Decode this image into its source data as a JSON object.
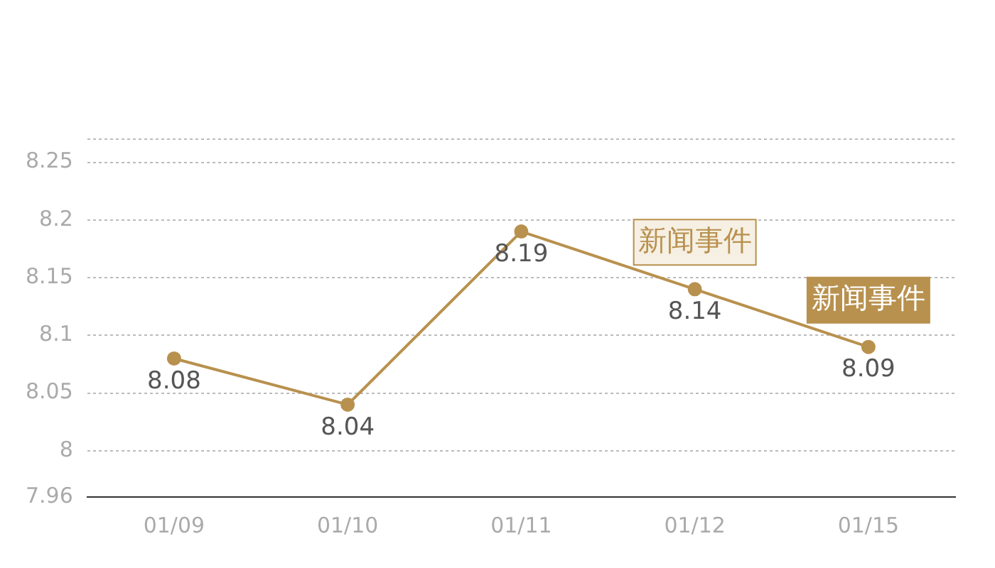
{
  "chart_data": {
    "type": "line",
    "categories": [
      "01/09",
      "01/10",
      "01/11",
      "01/12",
      "01/15"
    ],
    "series": [
      {
        "color": "#b8914e",
        "values": [
          8.08,
          8.04,
          8.19,
          8.14,
          8.09
        ]
      }
    ],
    "ylim": [
      7.96,
      8.27
    ],
    "yticks": [
      7.96,
      8,
      8.05,
      8.1,
      8.15,
      8.2,
      8.25,
      {
        "value": 8.27,
        "label": null
      }
    ],
    "grid": "y",
    "marker": "circle",
    "line_style": "solid",
    "data_labels": true,
    "legend": false,
    "annotations": [
      {
        "text": "新闻事件",
        "x": "01/12",
        "y": 8.14
      },
      {
        "text": "新闻事件",
        "x": "01/15",
        "y": 8.09
      }
    ]
  }
}
